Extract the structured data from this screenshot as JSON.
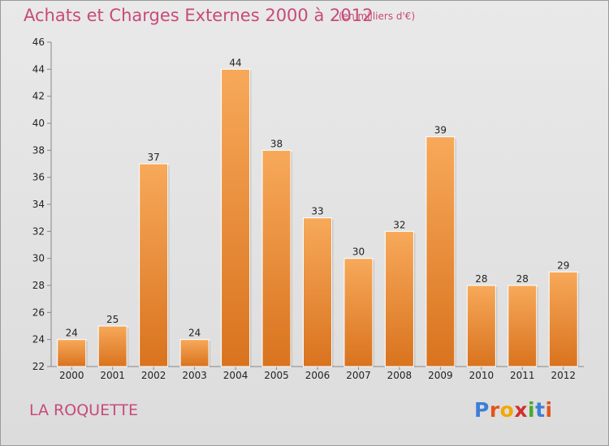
{
  "title": "Achats et Charges Externes 2000 à 2012",
  "subtitle": "(en milliers d'€)",
  "commune": "LA ROQUETTE",
  "logo": {
    "letters": [
      "P",
      "r",
      "o",
      "x",
      "i",
      "t",
      "i"
    ],
    "colors": [
      "#3d7fd6",
      "#e5541c",
      "#f2a800",
      "#d22f2f",
      "#4aa82c",
      "#3d7fd6",
      "#e5541c"
    ]
  },
  "colors": {
    "bar_top": "#f7a95a",
    "bar_bottom": "#d9731e",
    "text_accent": "#c84a7a"
  },
  "chart_data": {
    "type": "bar",
    "categories": [
      "2000",
      "2001",
      "2002",
      "2003",
      "2004",
      "2005",
      "2006",
      "2007",
      "2008",
      "2009",
      "2010",
      "2011",
      "2012"
    ],
    "values": [
      24,
      25,
      37,
      24,
      44,
      38,
      33,
      30,
      32,
      39,
      28,
      28,
      29
    ],
    "ylim": [
      22,
      46
    ],
    "yticks": [
      22,
      24,
      26,
      28,
      30,
      32,
      34,
      36,
      38,
      40,
      42,
      44,
      46
    ],
    "grid": false,
    "data_labels": true
  }
}
